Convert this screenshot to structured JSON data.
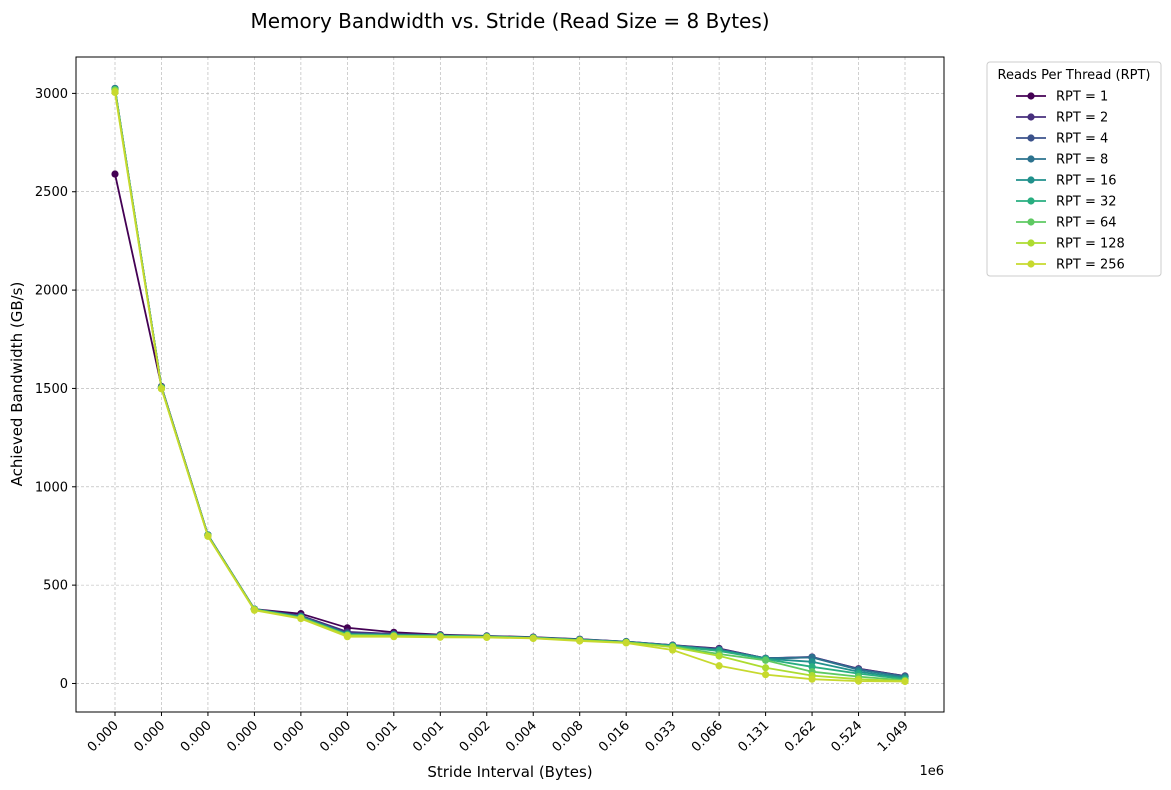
{
  "chart_data": {
    "type": "line",
    "title": "Memory Bandwidth vs. Stride (Read Size = 8 Bytes)",
    "xlabel": "Stride Interval (Bytes)",
    "ylabel": "Achieved Bandwidth (GB/s)",
    "x_offset_label": "1e6",
    "categories": [
      "0.000",
      "0.000",
      "0.000",
      "0.000",
      "0.000",
      "0.000",
      "0.001",
      "0.001",
      "0.002",
      "0.004",
      "0.008",
      "0.016",
      "0.033",
      "0.066",
      "0.131",
      "0.262",
      "0.524",
      "1.049"
    ],
    "ylim": [
      -145,
      3185
    ],
    "yticks": [
      0,
      500,
      1000,
      1500,
      2000,
      2500,
      3000
    ],
    "grid": true,
    "legend_title": "Reads Per Thread (RPT)",
    "legend_position": "outside-upper-right",
    "series": [
      {
        "name": "RPT = 1",
        "color": "#440154",
        "values": [
          2590,
          1510,
          755,
          378,
          355,
          283,
          260,
          248,
          242,
          236,
          225,
          213,
          195,
          178,
          128,
          133,
          75,
          38
        ]
      },
      {
        "name": "RPT = 2",
        "color": "#472f7d",
        "values": [
          3020,
          1508,
          755,
          378,
          345,
          262,
          252,
          246,
          240,
          234,
          224,
          212,
          194,
          176,
          128,
          135,
          74,
          37
        ]
      },
      {
        "name": "RPT = 4",
        "color": "#3b528b",
        "values": [
          3025,
          1507,
          755,
          378,
          342,
          255,
          250,
          245,
          240,
          234,
          224,
          212,
          194,
          174,
          128,
          133,
          72,
          36
        ]
      },
      {
        "name": "RPT = 8",
        "color": "#2c728e",
        "values": [
          3025,
          1507,
          755,
          378,
          340,
          252,
          248,
          244,
          240,
          234,
          223,
          212,
          193,
          172,
          128,
          132,
          70,
          35
        ]
      },
      {
        "name": "RPT = 16",
        "color": "#21918c",
        "values": [
          3022,
          1505,
          754,
          377,
          338,
          250,
          246,
          243,
          239,
          233,
          222,
          211,
          192,
          168,
          126,
          110,
          60,
          28
        ]
      },
      {
        "name": "RPT = 32",
        "color": "#28ae80",
        "values": [
          3020,
          1505,
          753,
          377,
          336,
          248,
          245,
          242,
          238,
          232,
          221,
          210,
          190,
          165,
          124,
          85,
          50,
          22
        ]
      },
      {
        "name": "RPT = 64",
        "color": "#5ec962",
        "values": [
          3018,
          1503,
          752,
          376,
          334,
          246,
          243,
          240,
          237,
          231,
          220,
          209,
          188,
          150,
          118,
          60,
          35,
          16
        ]
      },
      {
        "name": "RPT = 128",
        "color": "#addc30",
        "values": [
          3012,
          1500,
          750,
          375,
          332,
          244,
          241,
          238,
          236,
          230,
          219,
          208,
          185,
          140,
          80,
          40,
          22,
          12
        ]
      },
      {
        "name": "RPT = 256",
        "color": "#c7d92e",
        "values": [
          3005,
          1498,
          748,
          372,
          330,
          238,
          238,
          235,
          234,
          229,
          216,
          206,
          170,
          90,
          45,
          22,
          12,
          10
        ]
      }
    ]
  }
}
